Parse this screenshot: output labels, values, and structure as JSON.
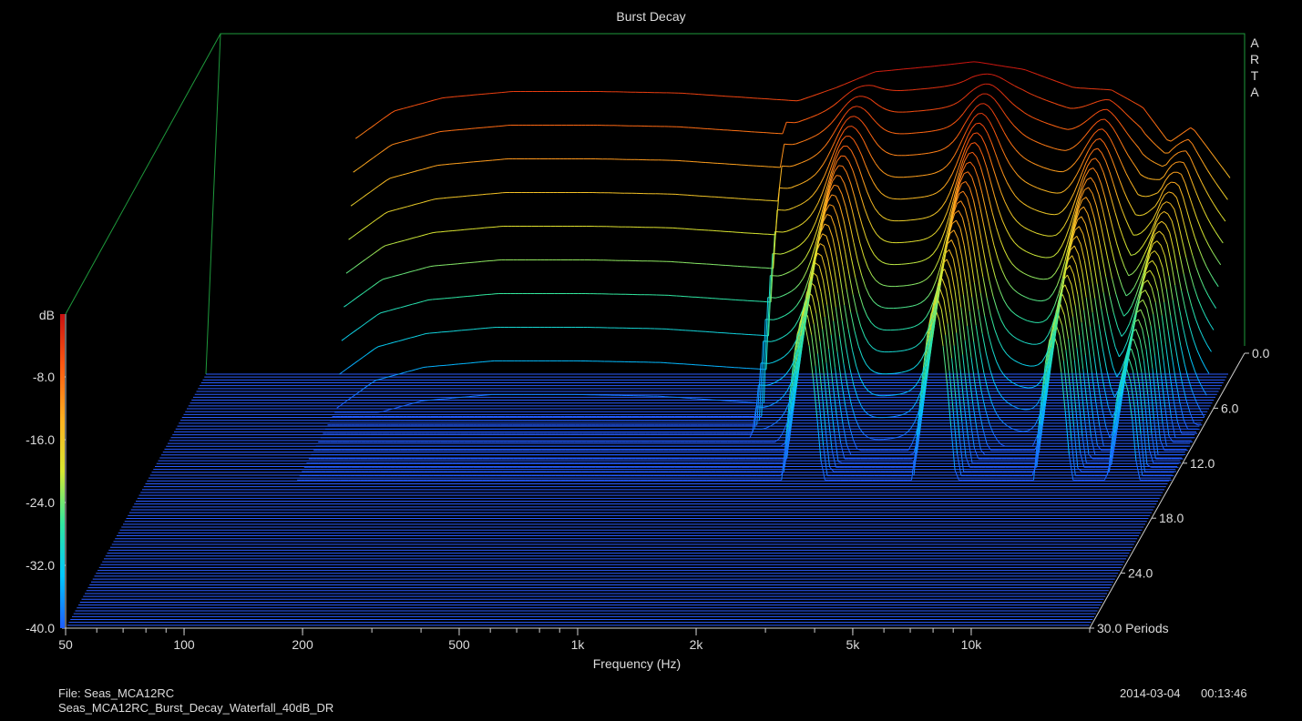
{
  "chart_data": {
    "type": "waterfall",
    "title": "Burst Decay",
    "xlabel": "Frequency (Hz)",
    "x_scale": "log",
    "xlim": [
      50,
      20000
    ],
    "x_ticks": [
      50,
      100,
      200,
      500,
      1000,
      2000,
      5000,
      10000
    ],
    "x_tick_labels": [
      "50",
      "100",
      "200",
      "500",
      "1k",
      "2k",
      "5k",
      "10k"
    ],
    "zlabel": "dB",
    "zlim": [
      -40,
      0
    ],
    "z_ticks": [
      -8,
      -16,
      -24,
      -32,
      -40
    ],
    "z_tick_labels": [
      "-8.0",
      "-16.0",
      "-24.0",
      "-32.0",
      "-40.0"
    ],
    "ylabel": "Periods",
    "ylim": [
      0,
      30
    ],
    "y_ticks": [
      0,
      6,
      12,
      18,
      24,
      30
    ],
    "y_tick_labels": [
      "0.0",
      "6.0",
      "12.0",
      "18.0",
      "24.0",
      "30.0 Periods"
    ],
    "first_slice_db": [
      {
        "f": 120,
        "db": -10
      },
      {
        "f": 150,
        "db": -6.5
      },
      {
        "f": 200,
        "db": -4.8
      },
      {
        "f": 300,
        "db": -4
      },
      {
        "f": 500,
        "db": -4
      },
      {
        "f": 800,
        "db": -4.2
      },
      {
        "f": 1200,
        "db": -4.8
      },
      {
        "f": 1600,
        "db": -5.2
      },
      {
        "f": 2000,
        "db": -3.5
      },
      {
        "f": 2500,
        "db": -1.5
      },
      {
        "f": 3500,
        "db": -0.8
      },
      {
        "f": 4500,
        "db": -0.2
      },
      {
        "f": 6000,
        "db": -1.2
      },
      {
        "f": 8000,
        "db": -3.5
      },
      {
        "f": 10000,
        "db": -3.8
      },
      {
        "f": 12000,
        "db": -6
      },
      {
        "f": 14000,
        "db": -10.5
      },
      {
        "f": 16000,
        "db": -8.5
      },
      {
        "f": 20000,
        "db": -15
      }
    ],
    "resonances_hz": [
      2300,
      5000,
      10000,
      15000
    ],
    "colormap": [
      "#1e5cff",
      "#00c8ff",
      "#30e8a0",
      "#d8e830",
      "#ffb020",
      "#ff5a10",
      "#c81010"
    ]
  },
  "arta_label": [
    "A",
    "R",
    "T",
    "A"
  ],
  "footer": {
    "file_label": "File: Seas_MCA12RC",
    "file_name": "Seas_MCA12RC_Burst_Decay_Waterfall_40dB_DR",
    "date": "2014-03-04",
    "time": "00:13:46"
  },
  "colors": {
    "frame": "#1e9a3c",
    "axis": "#cfcfcf",
    "floor_lines": "#2a5cff"
  }
}
